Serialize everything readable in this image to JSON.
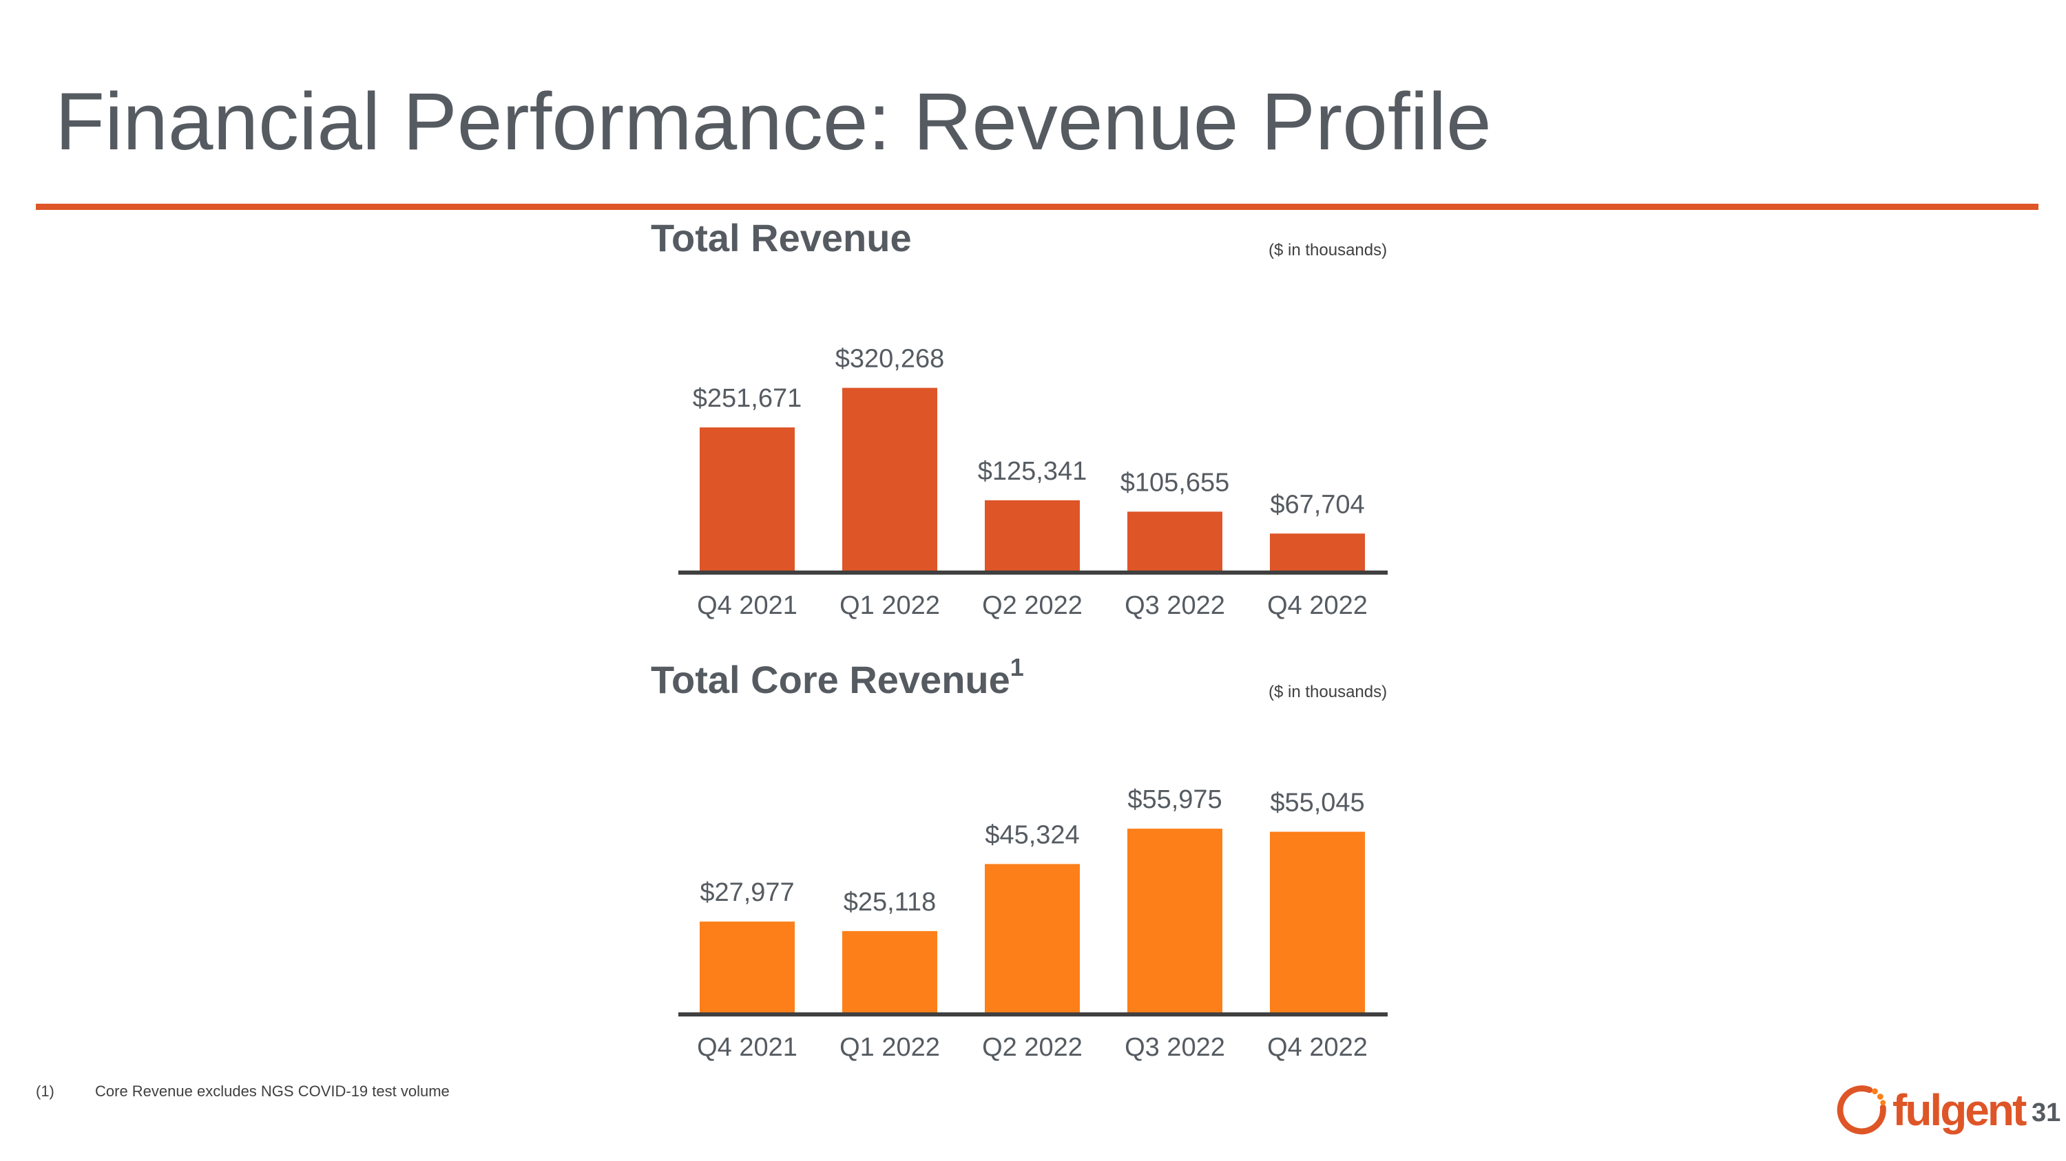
{
  "slide": {
    "title": "Financial Performance: Revenue Profile",
    "page_number": "31",
    "footnote": {
      "marker": "(1)",
      "text": "Core Revenue excludes NGS COVID-19 test volume"
    },
    "logo": {
      "text": "fulgent",
      "color": "#de5527"
    }
  },
  "charts": {
    "total_revenue": {
      "title": "Total Revenue",
      "units_note": "($ in thousands)"
    },
    "core_revenue": {
      "title": "Total Core Revenue",
      "superscript": "1",
      "units_note": "($ in thousands)"
    }
  },
  "chart_data": [
    {
      "type": "bar",
      "title": "Total Revenue",
      "units": "($ in thousands)",
      "categories": [
        "Q4 2021",
        "Q1 2022",
        "Q2 2022",
        "Q3 2022",
        "Q4 2022"
      ],
      "values": [
        251671,
        320268,
        125341,
        105655,
        67704
      ],
      "labels": [
        "$251,671",
        "$320,268",
        "$125,341",
        "$105,655",
        "$67,704"
      ],
      "ylim": [
        0,
        420000
      ],
      "bar_color": "#de5527",
      "xlabel": "",
      "ylabel": "",
      "grid": false,
      "legend": "none"
    },
    {
      "type": "bar",
      "title": "Total Core Revenue",
      "units": "($ in thousands)",
      "categories": [
        "Q4 2021",
        "Q1 2022",
        "Q2 2022",
        "Q3 2022",
        "Q4 2022"
      ],
      "values": [
        27977,
        25118,
        45324,
        55975,
        55045
      ],
      "labels": [
        "$27,977",
        "$25,118",
        "$45,324",
        "$55,975",
        "$55,045"
      ],
      "ylim": [
        0,
        73000
      ],
      "bar_color": "#fd7f1a",
      "xlabel": "",
      "ylabel": "",
      "grid": false,
      "legend": "none"
    }
  ]
}
